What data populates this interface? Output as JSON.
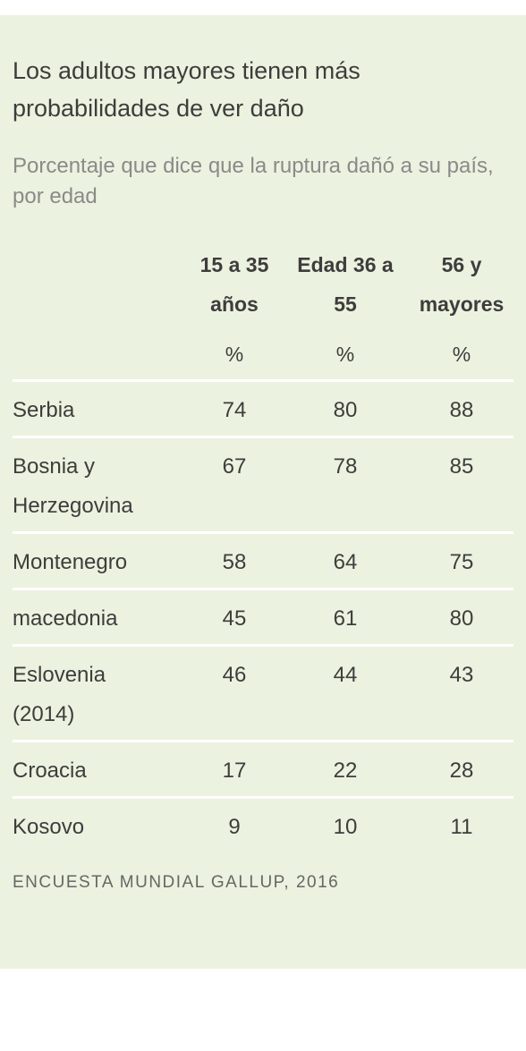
{
  "title": "Los adultos mayores tienen más probabilidades de ver daño",
  "subtitle": "Porcentaje que dice que la ruptura dañó a su país, por edad",
  "source": "ENCUESTA MUNDIAL GALLUP, 2016",
  "colors": {
    "panel_background": "#ebf2df",
    "row_rule": "#ffffff",
    "text": "#3d3d3d",
    "subtitle_text": "#8a8a8a",
    "source_text": "#666666"
  },
  "chart_data": {
    "type": "table",
    "columns": [
      {
        "header": "15 a 35 años",
        "unit": "%"
      },
      {
        "header": "Edad 36 a 55",
        "unit": "%"
      },
      {
        "header": "56 y mayores",
        "unit": "%"
      }
    ],
    "rows": [
      {
        "label": "Serbia",
        "values": [
          "74",
          "80",
          "88"
        ]
      },
      {
        "label": "Bosnia y Herzegovina",
        "values": [
          "67",
          "78",
          "85"
        ]
      },
      {
        "label": "Montenegro",
        "values": [
          "58",
          "64",
          "75"
        ]
      },
      {
        "label": "macedonia",
        "values": [
          "45",
          "61",
          "80"
        ]
      },
      {
        "label": "Eslovenia (2014)",
        "values": [
          "46",
          "44",
          "43"
        ]
      },
      {
        "label": "Croacia",
        "values": [
          "17",
          "22",
          "28"
        ]
      },
      {
        "label": "Kosovo",
        "values": [
          "9",
          "10",
          "11"
        ]
      }
    ]
  }
}
